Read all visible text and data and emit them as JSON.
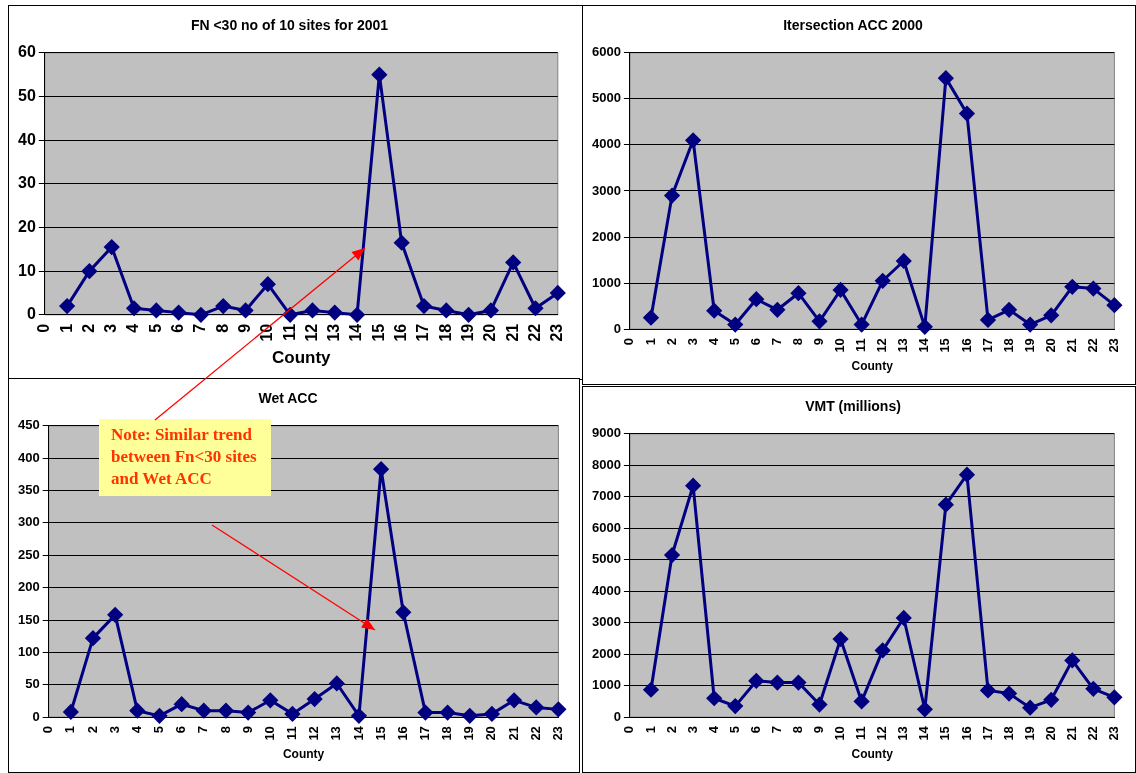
{
  "chart_data": [
    {
      "type": "line",
      "title": "FN <30 no of 10 sites for 2001",
      "xlabel": "County",
      "x": [
        1,
        2,
        3,
        4,
        5,
        6,
        7,
        8,
        9,
        10,
        11,
        12,
        13,
        14,
        15,
        16,
        17,
        18,
        19,
        20,
        21,
        22,
        23
      ],
      "values": [
        2,
        10,
        15.5,
        1.5,
        1,
        0.5,
        0,
        2,
        1,
        7,
        0,
        1,
        0.5,
        0,
        55,
        16.5,
        2,
        1,
        0,
        1,
        12,
        1.5,
        5
      ],
      "color": "#000080",
      "xlim": [
        0,
        23
      ],
      "xticks": [
        0,
        1,
        2,
        3,
        4,
        5,
        6,
        7,
        8,
        9,
        10,
        11,
        12,
        13,
        14,
        15,
        16,
        17,
        18,
        19,
        20,
        21,
        22,
        23
      ],
      "ylim": [
        0,
        60
      ],
      "yticks": [
        0,
        10,
        20,
        30,
        40,
        50,
        60
      ],
      "grid": "y",
      "marker": "diamond"
    },
    {
      "type": "line",
      "title": "Itersection ACC 2000",
      "xlabel": "County",
      "x": [
        1,
        2,
        3,
        4,
        5,
        6,
        7,
        8,
        9,
        10,
        11,
        12,
        13,
        14,
        15,
        16,
        17,
        18,
        19,
        20,
        21,
        22,
        23
      ],
      "values": [
        250,
        2900,
        4100,
        400,
        100,
        650,
        420,
        780,
        170,
        850,
        100,
        1050,
        1480,
        50,
        5450,
        4680,
        200,
        420,
        100,
        300,
        920,
        880,
        520
      ],
      "color": "#000080",
      "xlim": [
        0,
        23
      ],
      "xticks": [
        0,
        1,
        2,
        3,
        4,
        5,
        6,
        7,
        8,
        9,
        10,
        11,
        12,
        13,
        14,
        15,
        16,
        17,
        18,
        19,
        20,
        21,
        22,
        23
      ],
      "ylim": [
        0,
        6000
      ],
      "yticks": [
        0,
        1000,
        2000,
        3000,
        4000,
        5000,
        6000
      ],
      "grid": "y",
      "marker": "diamond"
    },
    {
      "type": "line",
      "title": "Wet ACC",
      "xlabel": "County",
      "x": [
        1,
        2,
        3,
        4,
        5,
        6,
        7,
        8,
        9,
        10,
        11,
        12,
        13,
        14,
        15,
        16,
        17,
        18,
        19,
        20,
        21,
        22,
        23
      ],
      "values": [
        8,
        122,
        158,
        10,
        2,
        20,
        10,
        10,
        7,
        26,
        5,
        28,
        52,
        2,
        383,
        162,
        7,
        7,
        2,
        5,
        26,
        15,
        12
      ],
      "color": "#000080",
      "xlim": [
        0,
        23
      ],
      "xticks": [
        0,
        1,
        2,
        3,
        4,
        5,
        6,
        7,
        8,
        9,
        10,
        11,
        12,
        13,
        14,
        15,
        16,
        17,
        18,
        19,
        20,
        21,
        22,
        23
      ],
      "ylim": [
        0,
        450
      ],
      "yticks": [
        0,
        50,
        100,
        150,
        200,
        250,
        300,
        350,
        400,
        450
      ],
      "grid": "y",
      "marker": "diamond",
      "annotations": [
        "Note: Similar trend between Fn<30 sites and Wet ACC"
      ]
    },
    {
      "type": "line",
      "title": "VMT (millions)",
      "xlabel": "County",
      "x": [
        1,
        2,
        3,
        4,
        5,
        6,
        7,
        8,
        9,
        10,
        11,
        12,
        13,
        14,
        15,
        16,
        17,
        18,
        19,
        20,
        21,
        22,
        23
      ],
      "values": [
        870,
        5150,
        7350,
        600,
        350,
        1150,
        1100,
        1100,
        400,
        2480,
        500,
        2120,
        3150,
        250,
        6750,
        7700,
        850,
        750,
        300,
        550,
        1800,
        900,
        630
      ],
      "color": "#000080",
      "xlim": [
        0,
        23
      ],
      "xticks": [
        0,
        1,
        2,
        3,
        4,
        5,
        6,
        7,
        8,
        9,
        10,
        11,
        12,
        13,
        14,
        15,
        16,
        17,
        18,
        19,
        20,
        21,
        22,
        23
      ],
      "ylim": [
        0,
        9000
      ],
      "yticks": [
        0,
        1000,
        2000,
        3000,
        4000,
        5000,
        6000,
        7000,
        8000,
        9000
      ],
      "grid": "y",
      "marker": "diamond"
    }
  ]
}
